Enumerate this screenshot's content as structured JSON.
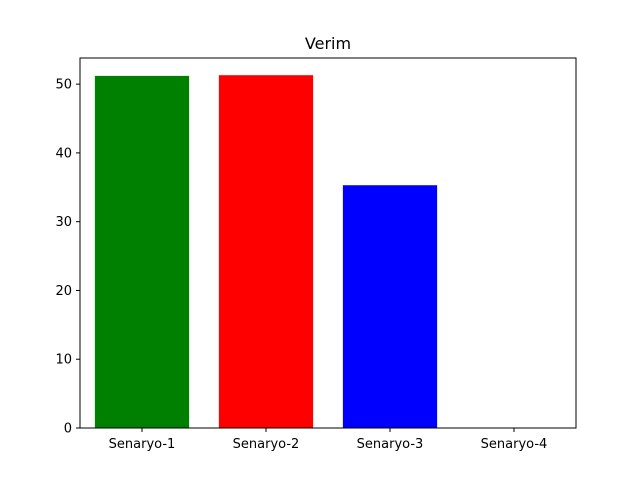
{
  "chart_data": {
    "type": "bar",
    "title": "Verim",
    "xlabel": "",
    "ylabel": "",
    "categories": [
      "Senaryo-1",
      "Senaryo-2",
      "Senaryo-3",
      "Senaryo-4"
    ],
    "values": [
      51.2,
      51.3,
      35.3,
      0
    ],
    "colors": [
      "#008000",
      "#ff0000",
      "#0000ff",
      "#ffffff"
    ],
    "ylim": [
      0,
      53.8
    ],
    "yticks": [
      0,
      10,
      20,
      30,
      40,
      50
    ],
    "grid": false,
    "legend": "none"
  }
}
